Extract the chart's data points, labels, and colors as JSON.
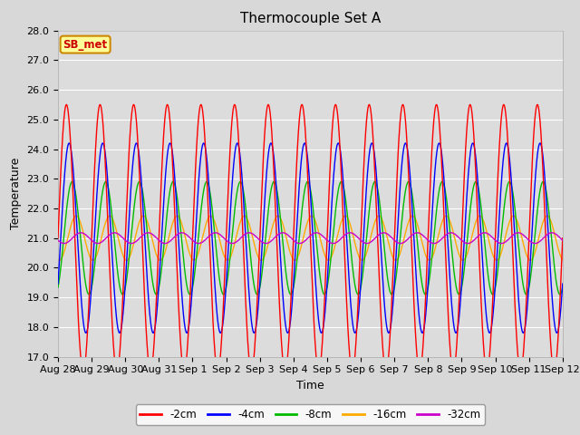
{
  "title": "Thermocouple Set A",
  "xlabel": "Time",
  "ylabel": "Temperature",
  "ylim": [
    17.0,
    28.0
  ],
  "yticks": [
    17.0,
    18.0,
    19.0,
    20.0,
    21.0,
    22.0,
    23.0,
    24.0,
    25.0,
    26.0,
    27.0,
    28.0
  ],
  "colors": {
    "-2cm": "#ff0000",
    "-4cm": "#0000ff",
    "-8cm": "#00bb00",
    "-16cm": "#ffaa00",
    "-32cm": "#cc00cc"
  },
  "legend_labels": [
    "-2cm",
    "-4cm",
    "-8cm",
    "-16cm",
    "-32cm"
  ],
  "annotation_text": "SB_met",
  "annotation_bg": "#ffff99",
  "annotation_edge": "#cc8800",
  "annotation_text_color": "#cc0000",
  "bg_color": "#d8d8d8",
  "plot_bg_color": "#dcdcdc",
  "grid_color": "#ffffff",
  "title_fontsize": 11,
  "axis_fontsize": 9,
  "tick_fontsize": 8,
  "mean_temp": 21.0,
  "amp_2cm": 4.5,
  "amp_4cm": 3.2,
  "amp_8cm": 1.9,
  "amp_16cm": 0.75,
  "amp_32cm": 0.18,
  "phase_2cm": -0.25,
  "phase_4cm": -0.17,
  "phase_8cm": -0.08,
  "phase_16cm": 0.04,
  "phase_32cm": 0.18,
  "n_days": 15
}
